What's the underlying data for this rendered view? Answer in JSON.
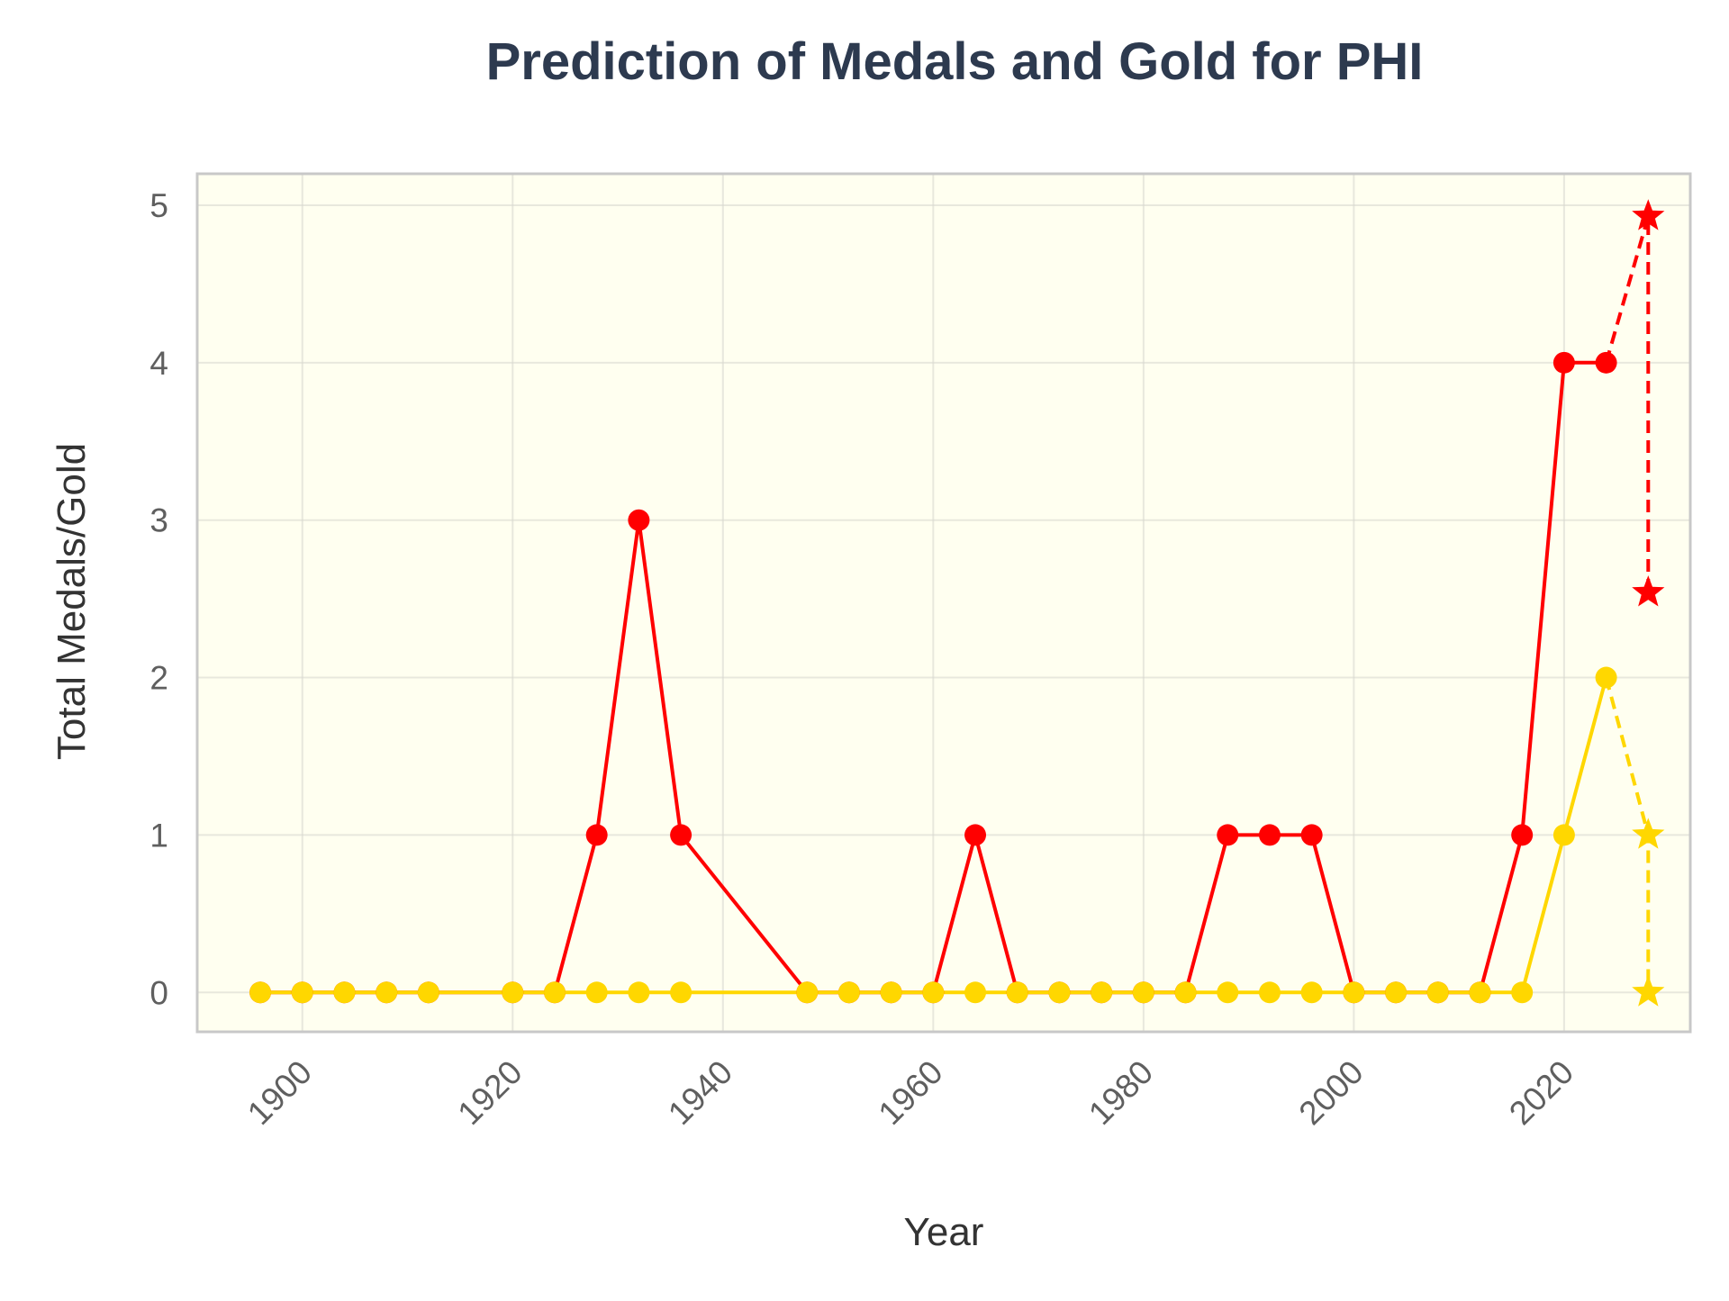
{
  "colors": {
    "medals": "#ff0000",
    "gold": "#ffd700",
    "plot_background": "#fffff0",
    "grid": "#d9d9d0",
    "frame": "#c8c8c8",
    "title": "#2d3a4f"
  },
  "chart_data": {
    "type": "line",
    "title": "Prediction of Medals and Gold for PHI",
    "xlabel": "Year",
    "ylabel": "Total Medals/Gold",
    "xlim": [
      1890,
      2032
    ],
    "ylim": [
      -0.25,
      5.2
    ],
    "x_ticks": [
      1900,
      1920,
      1940,
      1960,
      1980,
      2000,
      2020
    ],
    "y_ticks": [
      0,
      1,
      2,
      3,
      4,
      5
    ],
    "grid": true,
    "series": [
      {
        "key": "medals",
        "style": "solid",
        "marker": "circle",
        "x": [
          1896,
          1900,
          1904,
          1908,
          1912,
          1920,
          1924,
          1928,
          1932,
          1936,
          1948,
          1952,
          1956,
          1960,
          1964,
          1968,
          1972,
          1976,
          1980,
          1984,
          1988,
          1992,
          1996,
          2000,
          2004,
          2008,
          2012,
          2016,
          2020,
          2024
        ],
        "values": [
          0,
          0,
          0,
          0,
          0,
          0,
          0,
          1,
          3,
          1,
          0,
          0,
          0,
          0,
          1,
          0,
          0,
          0,
          0,
          0,
          1,
          1,
          1,
          0,
          0,
          0,
          0,
          1,
          4,
          4
        ]
      },
      {
        "key": "gold",
        "style": "solid",
        "marker": "circle",
        "x": [
          1896,
          1900,
          1904,
          1908,
          1912,
          1920,
          1924,
          1928,
          1932,
          1936,
          1948,
          1952,
          1956,
          1960,
          1964,
          1968,
          1972,
          1976,
          1980,
          1984,
          1988,
          1992,
          1996,
          2000,
          2004,
          2008,
          2012,
          2016,
          2020,
          2024
        ],
        "values": [
          0,
          0,
          0,
          0,
          0,
          0,
          0,
          0,
          0,
          0,
          0,
          0,
          0,
          0,
          0,
          0,
          0,
          0,
          0,
          0,
          0,
          0,
          0,
          0,
          0,
          0,
          0,
          0,
          1,
          2
        ]
      },
      {
        "key": "medals",
        "style": "dashed",
        "marker": "star",
        "x": [
          2024,
          2028,
          2028
        ],
        "values": [
          4,
          4.93,
          2.54
        ],
        "prediction": true
      },
      {
        "key": "gold",
        "style": "dashed",
        "marker": "star",
        "x": [
          2024,
          2028,
          2028
        ],
        "values": [
          2,
          1,
          0
        ],
        "prediction": true
      }
    ]
  }
}
